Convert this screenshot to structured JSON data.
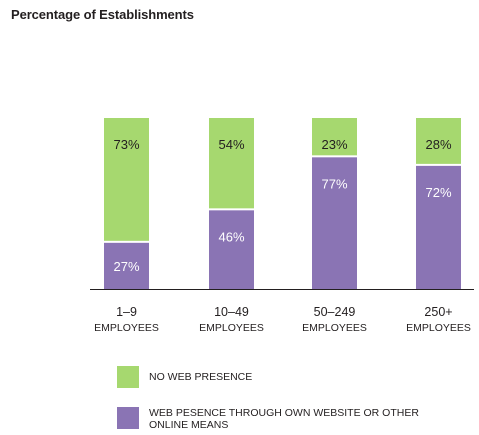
{
  "title": "Percentage of Establishments",
  "colors": {
    "no_web": "#a6d86f",
    "web": "#8a74b4",
    "text_dark": "#231f20",
    "text_light": "#ffffff",
    "axis": "#231f20"
  },
  "chart_data": {
    "type": "bar",
    "stacked": true,
    "title": "Percentage of Establishments",
    "xlabel": "",
    "ylabel": "",
    "ylim": [
      0,
      100
    ],
    "grid": false,
    "legend_position": "bottom",
    "categories": [
      {
        "top": "1–9",
        "bottom": "EMPLOYEES"
      },
      {
        "top": "10–49",
        "bottom": "EMPLOYEES"
      },
      {
        "top": "50–249",
        "bottom": "EMPLOYEES"
      },
      {
        "top": "250+",
        "bottom": "EMPLOYEES"
      }
    ],
    "series": [
      {
        "name": "WEB PESENCE THROUGH OWN WEBSITE OR OTHER ONLINE MEANS",
        "color": "#8a74b4",
        "values": [
          27,
          46,
          77,
          72
        ],
        "labels": [
          "27%",
          "46%",
          "77%",
          "72%"
        ]
      },
      {
        "name": "NO WEB PRESENCE",
        "color": "#a6d86f",
        "values": [
          73,
          54,
          23,
          28
        ],
        "labels": [
          "73%",
          "54%",
          "23%",
          "28%"
        ]
      }
    ]
  },
  "legend": {
    "items": [
      {
        "label": "NO WEB PRESENCE",
        "color": "#a6d86f"
      },
      {
        "label": "WEB PESENCE THROUGH OWN WEBSITE OR OTHER ONLINE MEANS",
        "color": "#8a74b4"
      }
    ]
  }
}
